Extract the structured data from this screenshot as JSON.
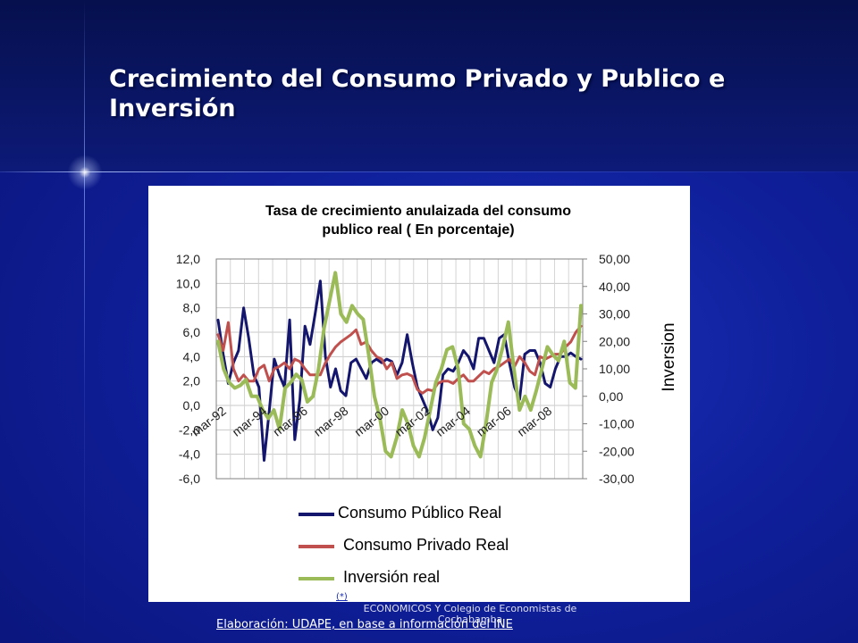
{
  "slide": {
    "title": "Crecimiento del Consumo Privado y Publico e Inversión",
    "caption": "Elaboración: UDAPE, en base a información del INE",
    "footer_mark": "(*)",
    "footer_note": "INSTITUTO DE ESTUDIOS SOCIO-ECONOMICOS Y Colegio de Economistas de Cochabamba"
  },
  "chart_data": {
    "type": "line",
    "title": "Tasa de crecimiento anulaizada del consumo publico real ( En porcentaje)",
    "ylabel_right": "Inversion",
    "x_tick_labels": [
      "mar-92",
      "mar-94",
      "mar-96",
      "mar-98",
      "mar-00",
      "mar-02",
      "mar-04",
      "mar-06",
      "mar-08"
    ],
    "y_left": {
      "range": [
        -6,
        12
      ],
      "ticks": [
        "12,0",
        "10,0",
        "8,0",
        "6,0",
        "4,0",
        "2,0",
        "0,0",
        "-2,0",
        "-4,0",
        "-6,0"
      ]
    },
    "y_right": {
      "range": [
        -30,
        50
      ],
      "ticks": [
        "50,00",
        "40,00",
        "30,00",
        "20,00",
        "10,00",
        "0,00",
        "-10,00",
        "-20,00",
        "-30,00"
      ]
    },
    "grid": true,
    "legend_position": "bottom",
    "series": [
      {
        "name": "Consumo Público Real",
        "axis": "left",
        "color": "#14166e",
        "values": [
          7.0,
          4.2,
          1.8,
          3.5,
          4.5,
          8.0,
          5.5,
          2.5,
          1.5,
          -4.5,
          -0.5,
          3.8,
          2.5,
          1.5,
          7.0,
          -2.8,
          0.5,
          6.5,
          5.0,
          7.5,
          10.2,
          4.0,
          1.5,
          3.0,
          1.2,
          0.8,
          3.5,
          3.8,
          3.0,
          2.2,
          3.5,
          3.8,
          3.5,
          3.8,
          3.6,
          2.5,
          3.5,
          5.8,
          3.5,
          1.5,
          0.5,
          -0.5,
          -2.0,
          -1.0,
          2.5,
          3.0,
          2.8,
          3.5,
          4.5,
          4.0,
          3.0,
          5.5,
          5.5,
          4.5,
          3.5,
          5.5,
          5.8,
          3.5,
          1.5,
          0.5,
          4.2,
          4.5,
          4.5,
          3.5,
          1.8,
          1.5,
          3.0,
          4.0,
          4.0,
          4.3,
          4.0,
          3.8
        ]
      },
      {
        "name": "Consumo Privado Real",
        "axis": "left",
        "color": "#c0504d",
        "values": [
          5.8,
          4.5,
          6.8,
          3.0,
          2.0,
          2.5,
          2.0,
          2.0,
          3.0,
          3.3,
          2.0,
          3.0,
          3.2,
          3.5,
          3.0,
          3.8,
          3.6,
          3.0,
          2.5,
          2.5,
          2.5,
          3.5,
          4.2,
          4.8,
          5.2,
          5.5,
          5.8,
          6.2,
          5.0,
          5.2,
          4.5,
          4.0,
          3.8,
          3.0,
          3.5,
          2.2,
          2.5,
          2.6,
          2.4,
          1.3,
          1.0,
          1.3,
          1.2,
          1.8,
          2.0,
          2.0,
          1.8,
          2.2,
          2.5,
          2.0,
          2.0,
          2.4,
          2.8,
          2.6,
          3.0,
          3.2,
          3.5,
          3.8,
          3.2,
          4.0,
          3.5,
          2.8,
          2.5,
          4.0,
          3.8,
          4.0,
          4.2,
          4.2,
          4.8,
          5.2,
          6.0,
          6.5
        ]
      },
      {
        "name": "Inversión real",
        "axis": "right",
        "color": "#9bbb59",
        "values": [
          20.0,
          10.0,
          5.0,
          3.0,
          4.0,
          6.0,
          0.0,
          0.0,
          -5.0,
          -8.0,
          -5.0,
          -12.0,
          3.0,
          5.0,
          8.0,
          6.0,
          -2.0,
          0.0,
          10.0,
          25.0,
          35.0,
          45.0,
          30.0,
          27.0,
          33.0,
          30.0,
          28.0,
          15.0,
          0.0,
          -8.0,
          -20.0,
          -22.0,
          -15.0,
          -5.0,
          -10.0,
          -18.0,
          -22.0,
          -15.0,
          -5.0,
          5.0,
          10.0,
          17.0,
          18.0,
          10.0,
          -10.0,
          -12.0,
          -18.0,
          -22.0,
          -10.0,
          5.0,
          10.0,
          18.0,
          27.0,
          10.0,
          -5.0,
          0.0,
          -5.0,
          2.0,
          10.0,
          18.0,
          15.0,
          13.0,
          20.0,
          5.0,
          3.0,
          33.0
        ]
      }
    ]
  }
}
